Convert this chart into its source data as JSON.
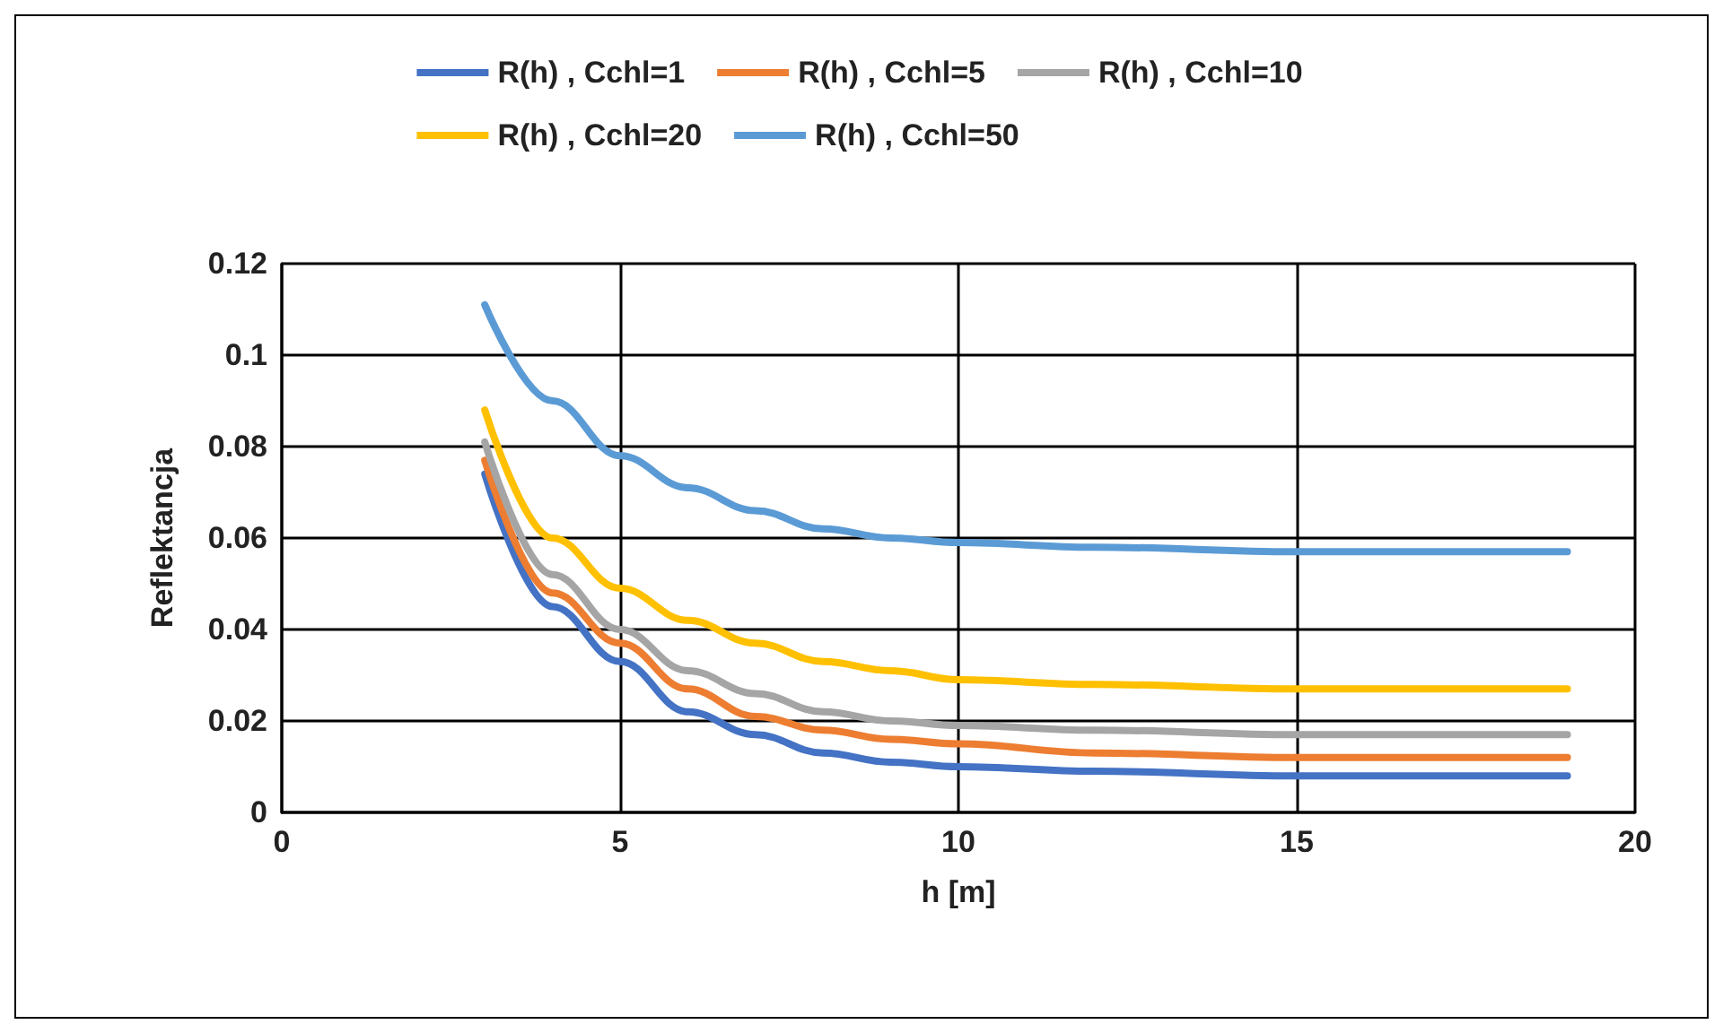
{
  "chart_data": {
    "type": "line",
    "xlabel": "h [m]",
    "ylabel": "Reflektancja",
    "x": [
      3,
      4,
      5,
      6,
      7,
      8,
      9,
      10,
      12,
      15,
      19
    ],
    "series": [
      {
        "name": "R(h) , Cchl=1",
        "color": "#4472c4",
        "values": [
          0.074,
          0.045,
          0.033,
          0.022,
          0.017,
          0.013,
          0.011,
          0.01,
          0.009,
          0.008,
          0.008
        ]
      },
      {
        "name": "R(h) , Cchl=5",
        "color": "#ed7d31",
        "values": [
          0.077,
          0.048,
          0.037,
          0.027,
          0.021,
          0.018,
          0.016,
          0.015,
          0.013,
          0.012,
          0.012
        ]
      },
      {
        "name": "R(h) , Cchl=10",
        "color": "#a5a5a5",
        "values": [
          0.081,
          0.052,
          0.04,
          0.031,
          0.026,
          0.022,
          0.02,
          0.019,
          0.018,
          0.017,
          0.017
        ]
      },
      {
        "name": "R(h) , Cchl=20",
        "color": "#ffc000",
        "values": [
          0.088,
          0.06,
          0.049,
          0.042,
          0.037,
          0.033,
          0.031,
          0.029,
          0.028,
          0.027,
          0.027
        ]
      },
      {
        "name": "R(h) , Cchl=50",
        "color": "#5b9bd5",
        "values": [
          0.111,
          0.09,
          0.078,
          0.071,
          0.066,
          0.062,
          0.06,
          0.059,
          0.058,
          0.057,
          0.057
        ]
      }
    ],
    "xlim": [
      0,
      20
    ],
    "xticks": [
      0,
      5,
      10,
      15,
      20
    ],
    "ylim": [
      0,
      0.12
    ],
    "yticks": [
      0,
      0.02,
      0.04,
      0.06,
      0.08,
      0.1,
      0.12
    ],
    "grid": true,
    "legend": "top",
    "marker": "none",
    "line_style": "solid"
  }
}
